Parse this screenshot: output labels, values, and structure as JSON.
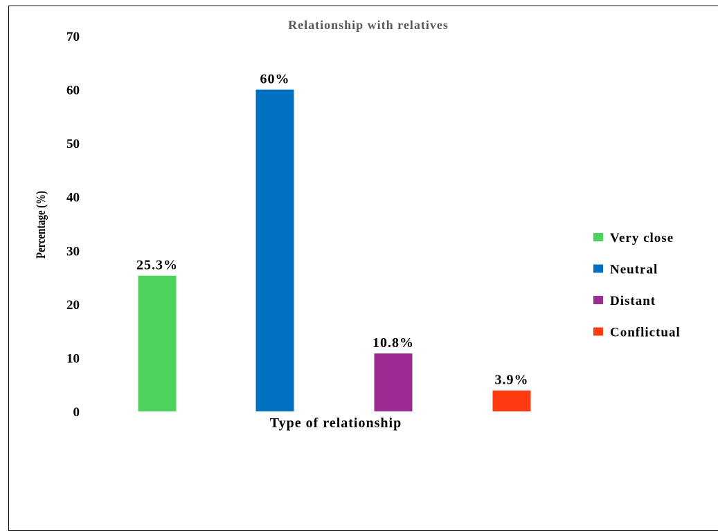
{
  "chart_data": {
    "type": "bar",
    "title": "Relationship with relatives",
    "xlabel": "Type of relationship",
    "ylabel": "Percentage (%)",
    "ylim": [
      0,
      70
    ],
    "yticks": [
      "0",
      "10",
      "20",
      "30",
      "40",
      "50",
      "60",
      "70"
    ],
    "categories": [
      "Very close",
      "Neutral",
      "Distant",
      "Conflictual"
    ],
    "values": [
      25.3,
      60,
      10.8,
      3.9
    ],
    "data_labels": [
      "25.3%",
      "60%",
      "10.8%",
      "3.9%"
    ],
    "colors": [
      "#4cd35b",
      "#0070c0",
      "#9b2c91",
      "#ff3b0f"
    ],
    "grid": false,
    "legend_position": "right"
  }
}
